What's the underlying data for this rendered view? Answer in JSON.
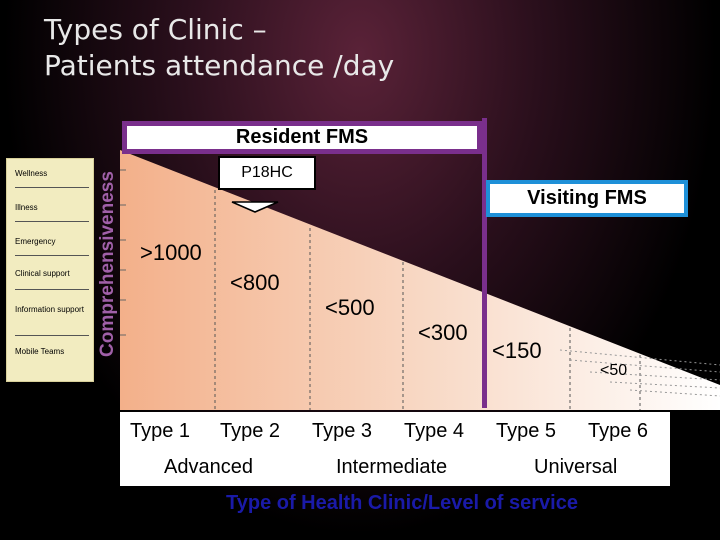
{
  "title": {
    "line1": "Types of Clinic –",
    "line2": "Patients attendance /day"
  },
  "left_panel": {
    "items": [
      "Wellness",
      "Illness",
      "Emergency",
      "Clinical support",
      "Information support",
      "Mobile Teams"
    ]
  },
  "y_axis_label": "Comprehensiveness",
  "resident_box": "Resident FMS",
  "visiting_box": "Visiting FMS",
  "p18_box": "P18HC",
  "values": [
    ">1000",
    "<800",
    "<500",
    "<300",
    "<150",
    "<50"
  ],
  "types": [
    "Type 1",
    "Type 2",
    "Type 3",
    "Type 4",
    "Type 5",
    "Type 6"
  ],
  "levels": [
    "Advanced",
    "Intermediate",
    "Universal"
  ],
  "footer": "Type of Health Clinic/Level of service",
  "colors": {
    "purple": "#7a2f8c",
    "blue": "#1e90d8",
    "footer": "#1a1aa8",
    "axis_label": "#a060a8"
  }
}
